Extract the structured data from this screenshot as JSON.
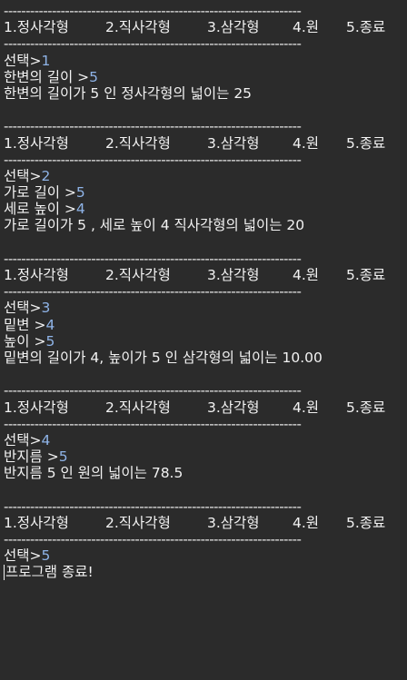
{
  "separator": "--------------------------------------------------------------------",
  "menu": [
    "1.정사각형",
    "2.직사각형",
    "3.삼각형",
    "4.원",
    "5.종료"
  ],
  "blocks": [
    {
      "lines": [
        {
          "prompt": "선택>",
          "input": "1"
        },
        {
          "prompt": "한변의 길이 >",
          "input": "5"
        },
        {
          "prompt": "한변의 길이가 5 인 정사각형의 넓이는 25",
          "input": ""
        }
      ]
    },
    {
      "lines": [
        {
          "prompt": "선택>",
          "input": "2"
        },
        {
          "prompt": "가로 길이 >",
          "input": "5"
        },
        {
          "prompt": "세로 높이 >",
          "input": "4"
        },
        {
          "prompt": "가로 길이가 5 , 세로 높이 4 직사각형의 넓이는 20",
          "input": ""
        }
      ]
    },
    {
      "lines": [
        {
          "prompt": "선택>",
          "input": "3"
        },
        {
          "prompt": "밑변 >",
          "input": "4"
        },
        {
          "prompt": "높이 >",
          "input": "5"
        },
        {
          "prompt": "밑변의 길이가 4, 높이가 5 인 삼각형의 넓이는 10.00",
          "input": ""
        }
      ]
    },
    {
      "lines": [
        {
          "prompt": "선택>",
          "input": "4"
        },
        {
          "prompt": "반지름 >",
          "input": "5"
        },
        {
          "prompt": "반지름 5 인 원의 넓이는 78.5",
          "input": ""
        }
      ]
    },
    {
      "lines": [
        {
          "prompt": "선택>",
          "input": "5"
        },
        {
          "prompt": "프로그램 종료!",
          "input": ""
        }
      ]
    }
  ],
  "colors": {
    "background": "#2b2b2b",
    "text": "#f2f2f2",
    "input": "#8fb4e8"
  }
}
